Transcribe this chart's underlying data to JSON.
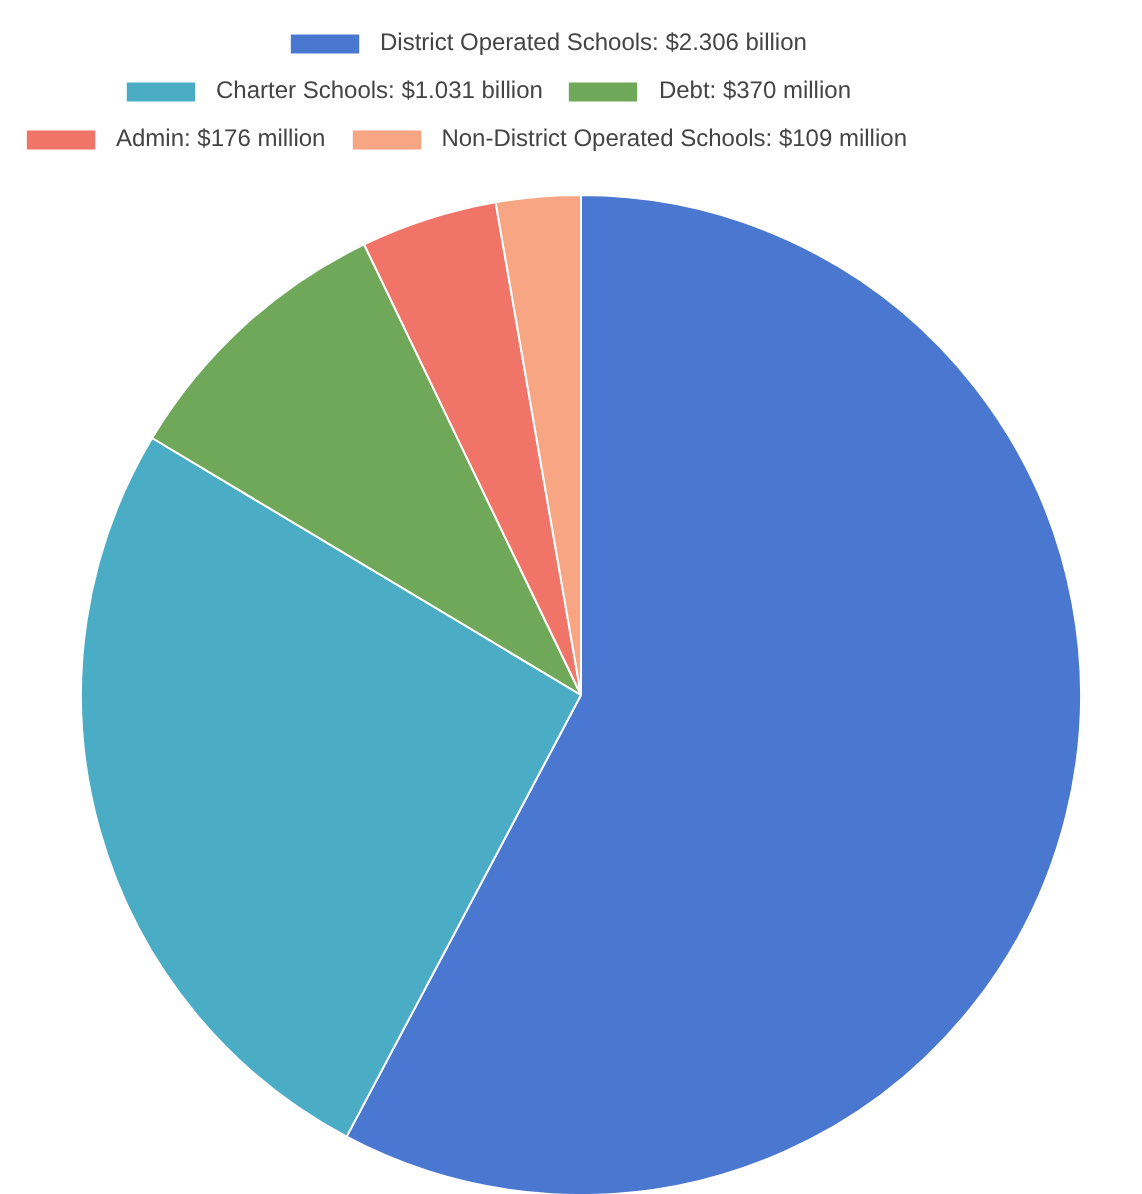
{
  "chart_data": {
    "type": "pie",
    "categories": [
      "District Operated Schools: $2.306 billion",
      "Charter Schools: $1.031 billion",
      "Debt: $370 million",
      "Admin: $176 million",
      "Non-District Operated Schools: $109 million"
    ],
    "values": [
      2306,
      1031,
      370,
      176,
      109
    ],
    "colors": [
      "#4a78d0",
      "#4bacc6",
      "#70a85a",
      "#f07467",
      "#f7a582"
    ],
    "legend": "top"
  }
}
